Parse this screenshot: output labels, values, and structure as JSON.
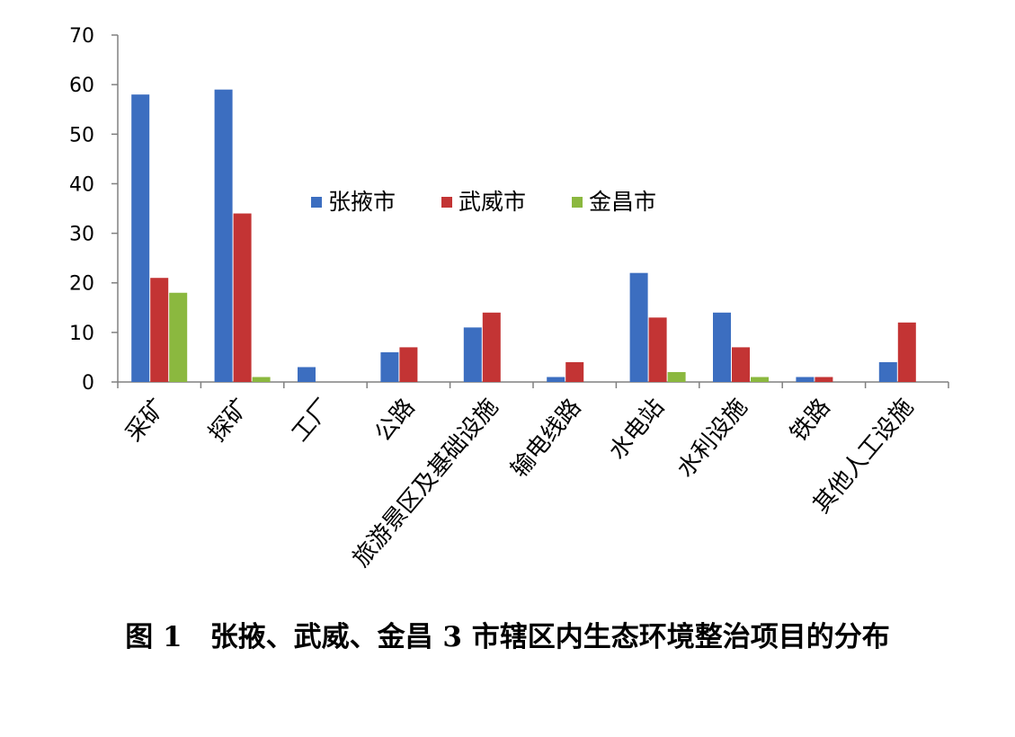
{
  "chart_data": {
    "type": "bar",
    "categories": [
      "采矿",
      "探矿",
      "工厂",
      "公路",
      "旅游景区及基础设施",
      "输电线路",
      "水电站",
      "水利设施",
      "铁路",
      "其他人工设施"
    ],
    "series": [
      {
        "name": "张掖市",
        "color": "#3c6ec0",
        "values": [
          58,
          59,
          3,
          6,
          11,
          1,
          22,
          14,
          1,
          4
        ]
      },
      {
        "name": "武威市",
        "color": "#c33434",
        "values": [
          21,
          34,
          0,
          7,
          14,
          4,
          13,
          7,
          1,
          12
        ]
      },
      {
        "name": "金昌市",
        "color": "#8bb83f",
        "values": [
          18,
          1,
          0,
          0,
          0,
          0,
          2,
          1,
          0,
          0
        ]
      }
    ],
    "ylim": [
      0,
      70
    ],
    "yticks": [
      0,
      10,
      20,
      30,
      40,
      50,
      60,
      70
    ],
    "grid": false,
    "legend": "center"
  },
  "caption": "图 1　张掖、武威、金昌 3 市辖区内生态环境整治项目的分布"
}
